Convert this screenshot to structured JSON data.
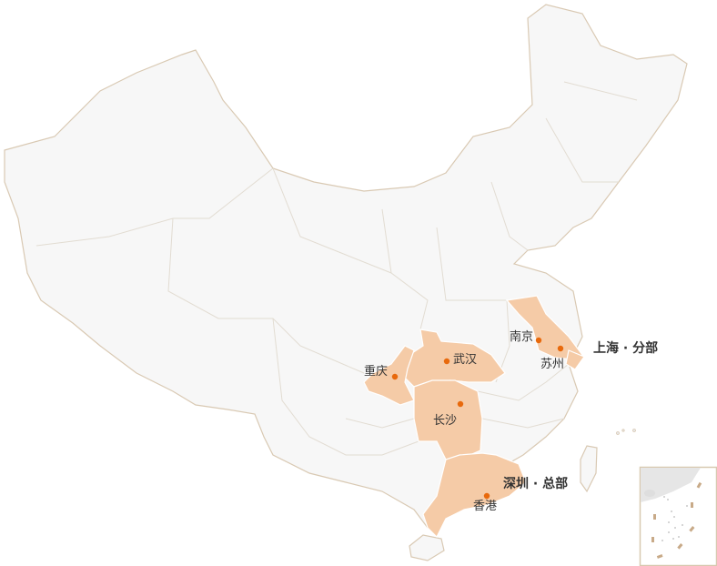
{
  "colors": {
    "land": "#f7f7f7",
    "border": "#d9c9b3",
    "highlight": "#f5cba7",
    "city_dot": "#e8690c",
    "inner_border": "#e2dcd2"
  },
  "cities": [
    {
      "name": "南京"
    },
    {
      "name": "苏州"
    },
    {
      "name": "武汉"
    },
    {
      "name": "重庆"
    },
    {
      "name": "长沙"
    },
    {
      "name": "香港"
    }
  ],
  "offices": [
    {
      "label": "上海 · 分部"
    },
    {
      "label": "深圳 · 总部"
    }
  ],
  "highlighted_regions": [
    "jiangsu",
    "shanghai",
    "hubei",
    "chongqing",
    "hunan",
    "guangdong"
  ]
}
